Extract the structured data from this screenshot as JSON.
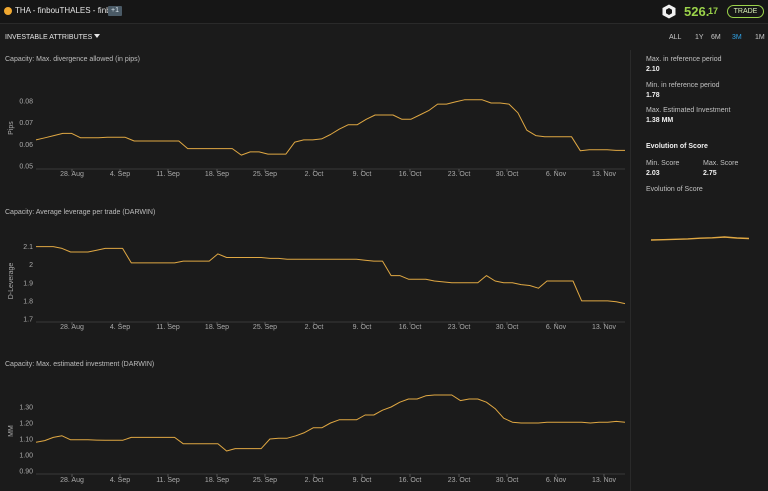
{
  "header": {
    "title": "THA - finbouTHALES - finbou",
    "badge": "+1",
    "score_int": "526.",
    "score_dec": "17",
    "trade_label": "TRADE",
    "accent_color": "#9bd34a",
    "status_color": "#f0a830"
  },
  "subheader": {
    "investable_label": "INVESTABLE ATTRIBUTES",
    "tabs": [
      {
        "label": "ALL",
        "active": false
      },
      {
        "label": "1Y",
        "active": false
      },
      {
        "label": "6M",
        "active": false
      },
      {
        "label": "3M",
        "active": true
      },
      {
        "label": "1M",
        "active": false
      }
    ]
  },
  "stats": {
    "max_ref_label": "Max. in reference period",
    "max_ref_value": "2.10",
    "min_ref_label": "Min. in reference period",
    "min_ref_value": "1.78",
    "max_inv_label": "Max. Estimated Investment",
    "max_inv_value": "1.38 MM",
    "evolution_title": "Evolution of Score",
    "min_score_label": "Min. Score",
    "min_score_value": "2.03",
    "max_score_label": "Max. Score",
    "max_score_value": "2.75",
    "evolution_sub": "Evolution of Score"
  },
  "line_color": "#e0a843",
  "chart_data": [
    {
      "type": "line",
      "title": "Capacity: Max. divergence allowed (in pips)",
      "ylabel": "Pips",
      "ylim": [
        0.05,
        0.085
      ],
      "yticks": [
        "0.08",
        "0.07",
        "0.06",
        "0.05"
      ],
      "ytick_values": [
        0.08,
        0.07,
        0.06,
        0.05
      ],
      "xticks": [
        "28. Aug",
        "4. Sep",
        "11. Sep",
        "18. Sep",
        "25. Sep",
        "2. Oct",
        "9. Oct",
        "16. Oct",
        "23. Oct",
        "30. Oct",
        "6. Nov",
        "13. Nov"
      ],
      "y": [
        0.062,
        0.063,
        0.064,
        0.065,
        0.065,
        0.063,
        0.063,
        0.063,
        0.0632,
        0.0632,
        0.0632,
        0.0615,
        0.0615,
        0.0615,
        0.0615,
        0.0615,
        0.0615,
        0.058,
        0.058,
        0.058,
        0.058,
        0.058,
        0.058,
        0.055,
        0.0565,
        0.0565,
        0.0555,
        0.0555,
        0.0555,
        0.061,
        0.062,
        0.062,
        0.0625,
        0.0645,
        0.067,
        0.069,
        0.069,
        0.0715,
        0.0735,
        0.0735,
        0.0735,
        0.0715,
        0.0715,
        0.0735,
        0.0755,
        0.0785,
        0.0785,
        0.0795,
        0.0805,
        0.0805,
        0.0805,
        0.079,
        0.079,
        0.0785,
        0.0745,
        0.0665,
        0.064,
        0.0635,
        0.0635,
        0.0635,
        0.0635,
        0.057,
        0.0575,
        0.0575,
        0.0575,
        0.0572,
        0.0572
      ]
    },
    {
      "type": "line",
      "title": "Capacity: Average leverage per trade (DARWIN)",
      "ylabel": "D-Leverage",
      "ylim": [
        1.7,
        2.12
      ],
      "yticks": [
        "2.1",
        "2",
        "1.9",
        "1.8",
        "1.7"
      ],
      "ytick_values": [
        2.1,
        2.0,
        1.9,
        1.8,
        1.7
      ],
      "xticks": [
        "28. Aug",
        "4. Sep",
        "11. Sep",
        "18. Sep",
        "25. Sep",
        "2. Oct",
        "9. Oct",
        "16. Oct",
        "23. Oct",
        "30. Oct",
        "6. Nov",
        "13. Nov"
      ],
      "y": [
        2.1,
        2.1,
        2.1,
        2.09,
        2.07,
        2.07,
        2.07,
        2.08,
        2.09,
        2.09,
        2.09,
        2.01,
        2.01,
        2.01,
        2.01,
        2.01,
        2.01,
        2.02,
        2.02,
        2.02,
        2.02,
        2.06,
        2.04,
        2.04,
        2.04,
        2.04,
        2.04,
        2.035,
        2.035,
        2.03,
        2.03,
        2.03,
        2.03,
        2.03,
        2.03,
        2.03,
        2.03,
        2.03,
        2.025,
        2.02,
        2.02,
        1.94,
        1.94,
        1.92,
        1.92,
        1.92,
        1.91,
        1.905,
        1.9,
        1.9,
        1.9,
        1.9,
        1.94,
        1.91,
        1.9,
        1.9,
        1.89,
        1.885,
        1.87,
        1.91,
        1.91,
        1.91,
        1.91,
        1.8,
        1.8,
        1.8,
        1.8,
        1.795,
        1.785
      ]
    },
    {
      "type": "line",
      "title": "Capacity: Max. estimated investment (DARWIN)",
      "ylabel": "MM",
      "ylim": [
        0.9,
        1.4
      ],
      "yticks": [
        "1.30",
        "1.20",
        "1.10",
        "1.00",
        "0.90"
      ],
      "ytick_values": [
        1.3,
        1.2,
        1.1,
        1.0,
        0.9
      ],
      "xticks": [
        "28. Aug",
        "4. Sep",
        "11. Sep",
        "18. Sep",
        "25. Sep",
        "2. Oct",
        "9. Oct",
        "16. Oct",
        "23. Oct",
        "30. Oct",
        "6. Nov",
        "13. Nov"
      ],
      "y": [
        1.08,
        1.09,
        1.11,
        1.12,
        1.095,
        1.095,
        1.095,
        1.093,
        1.092,
        1.092,
        1.092,
        1.11,
        1.11,
        1.11,
        1.11,
        1.11,
        1.11,
        1.07,
        1.07,
        1.07,
        1.07,
        1.07,
        1.025,
        1.04,
        1.04,
        1.04,
        1.04,
        1.1,
        1.105,
        1.105,
        1.12,
        1.14,
        1.17,
        1.17,
        1.2,
        1.22,
        1.22,
        1.22,
        1.25,
        1.25,
        1.28,
        1.3,
        1.33,
        1.35,
        1.35,
        1.37,
        1.375,
        1.375,
        1.375,
        1.34,
        1.35,
        1.35,
        1.33,
        1.29,
        1.23,
        1.205,
        1.2,
        1.2,
        1.2,
        1.205,
        1.205,
        1.205,
        1.205,
        1.205,
        1.2,
        1.205,
        1.205,
        1.21,
        1.205
      ]
    }
  ],
  "evolution_spark": [
    2.03,
    2.1,
    2.2,
    2.3,
    2.45,
    2.55,
    2.75,
    2.5,
    2.4
  ]
}
